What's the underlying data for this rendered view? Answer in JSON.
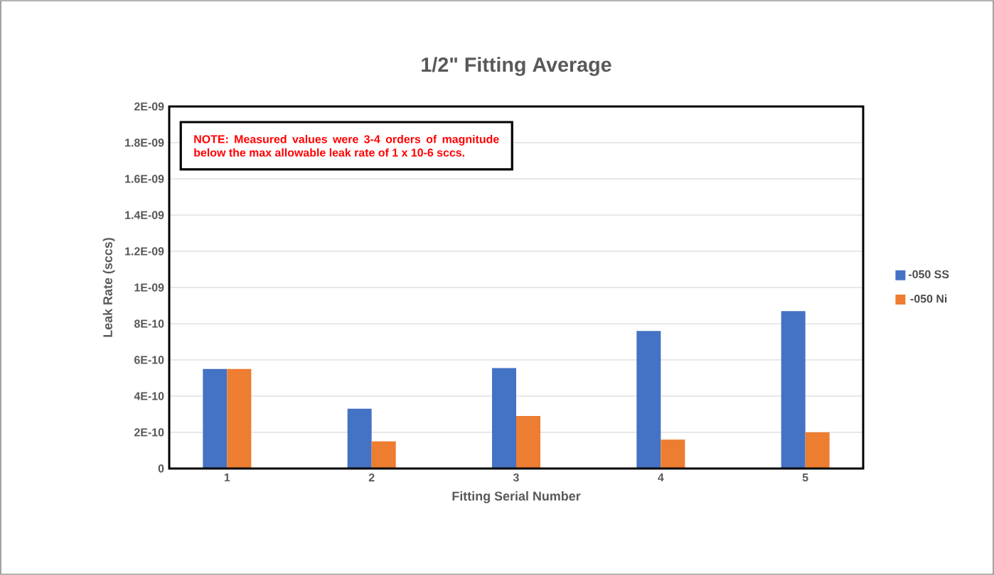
{
  "chart_data": {
    "type": "bar",
    "title": "1/2\" Fitting Average",
    "xlabel": "Fitting Serial Number",
    "ylabel": "Leak Rate (sccs)",
    "categories": [
      "1",
      "2",
      "3",
      "4",
      "5"
    ],
    "series": [
      {
        "name": "-050 SS",
        "color": "#4472c4",
        "values": [
          5.5e-10,
          3.3e-10,
          5.55e-10,
          7.6e-10,
          8.7e-10
        ]
      },
      {
        "name": "-050 Ni",
        "color": "#ed7d31",
        "values": [
          5.5e-10,
          1.5e-10,
          2.9e-10,
          1.6e-10,
          2e-10
        ]
      }
    ],
    "ylim": [
      0,
      2e-09
    ],
    "yticks": [
      0,
      {
        "value": 2e-10,
        "label": "2E-10"
      },
      {
        "value": 4e-10,
        "label": "4E-10"
      },
      {
        "value": 6e-10,
        "label": "6E-10"
      },
      {
        "value": 8e-10,
        "label": "8E-10"
      },
      {
        "value": 1e-09,
        "label": "1E-09"
      },
      {
        "value": 1.2e-09,
        "label": "1.2E-09"
      },
      {
        "value": 1.4e-09,
        "label": "1.4E-09"
      },
      {
        "value": 1.6e-09,
        "label": "1.6E-09"
      },
      {
        "value": 1.8e-09,
        "label": "1.8E-09"
      },
      {
        "value": 2e-09,
        "label": "2E-09"
      }
    ],
    "grid": "y",
    "legend": "right",
    "annotations": [
      "NOTE: Measured values were 3-4 orders of magnitude below the max allowable leak rate of 1 x 10-6 sccs."
    ]
  }
}
